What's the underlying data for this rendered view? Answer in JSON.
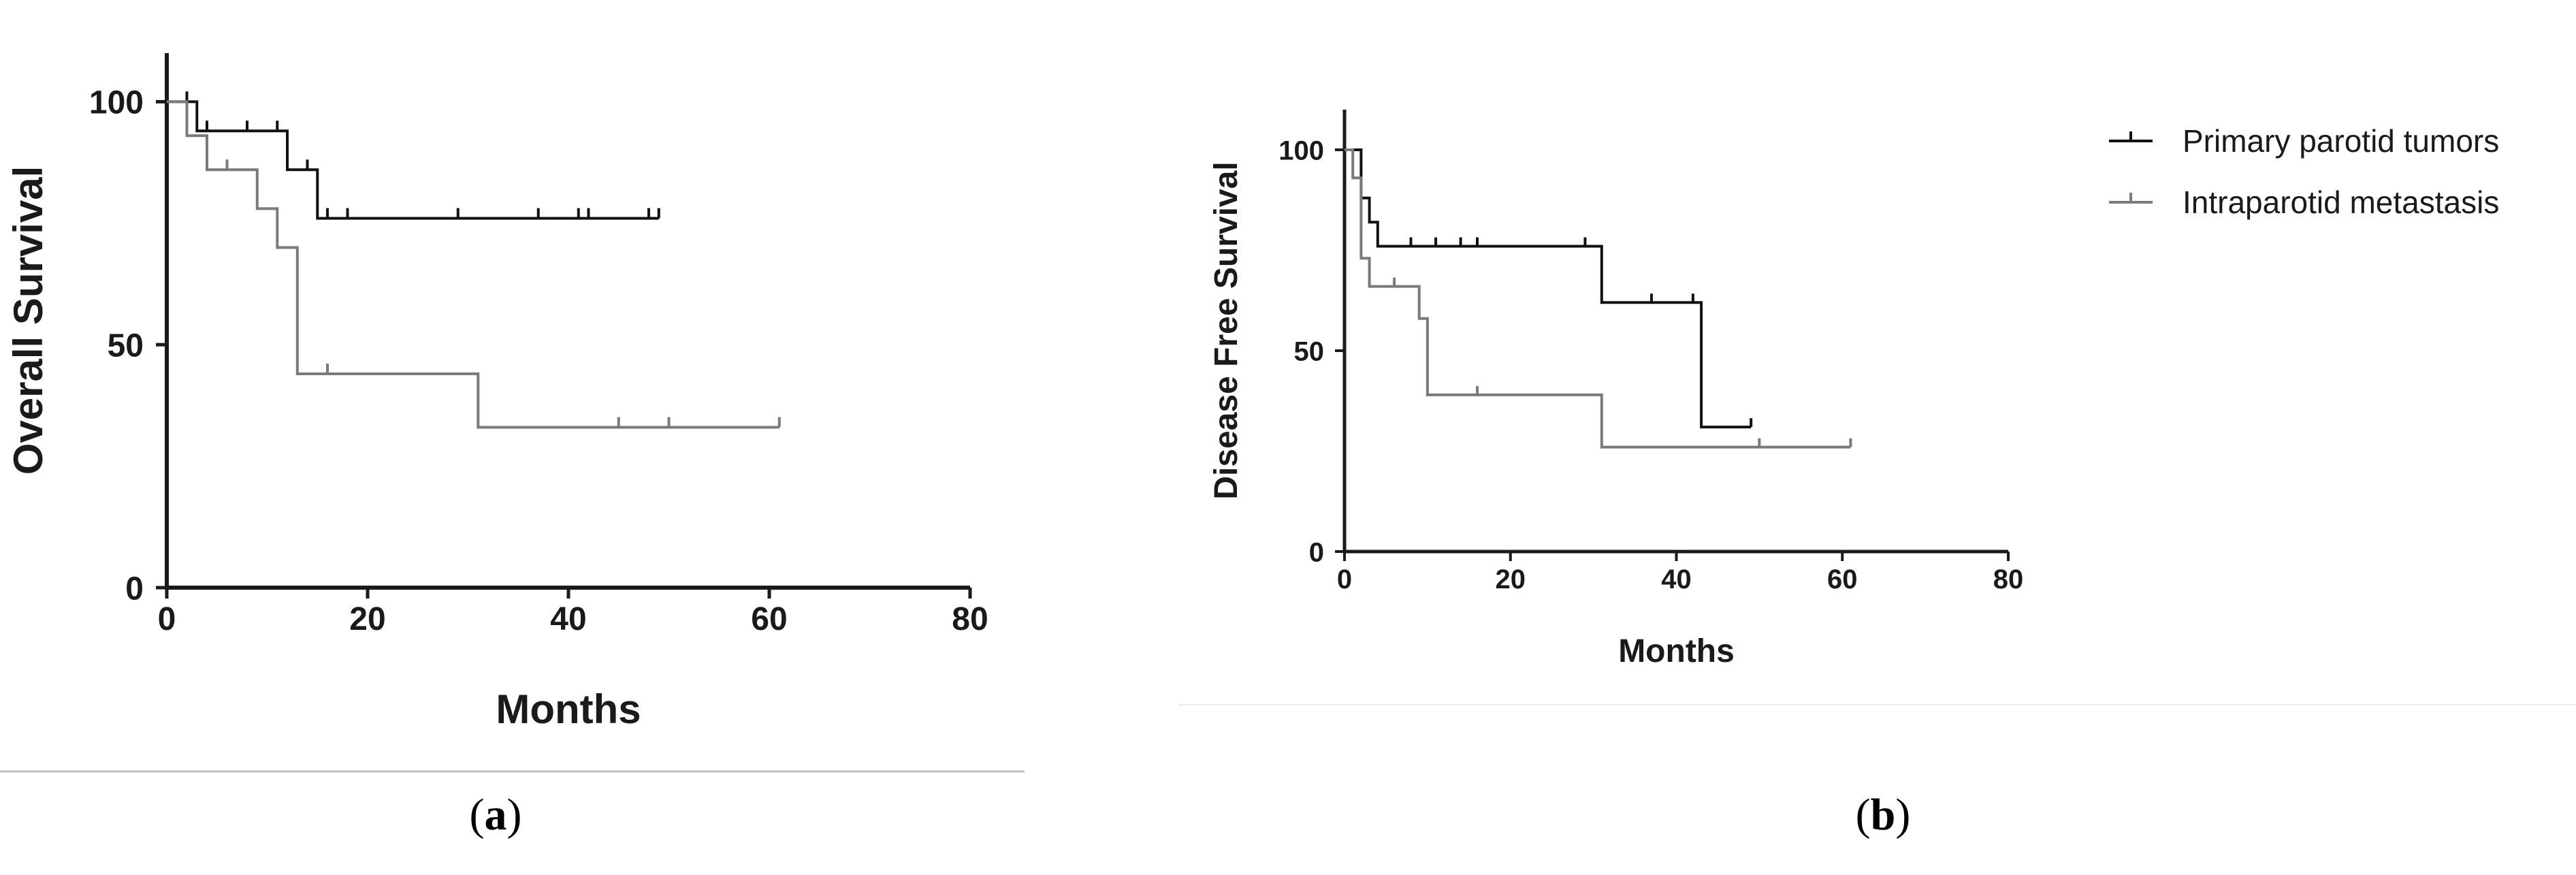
{
  "colors": {
    "primary": "#111111",
    "metastasis": "#7a7a7a",
    "axis": "#1a1a1a",
    "divider": "#bfbfbf"
  },
  "legend": [
    {
      "label": "Primary parotid tumors",
      "series": "primary"
    },
    {
      "label": "Intraparotid metastasis",
      "series": "metastasis"
    }
  ],
  "chart_data": [
    {
      "type": "line",
      "panel": "a",
      "caption_letter": "a",
      "ylabel": "Overall Survival",
      "xlabel": "Months",
      "xlim": [
        0,
        80
      ],
      "ylim": [
        0,
        110
      ],
      "xticks": [
        "0",
        "20",
        "40",
        "60",
        "80"
      ],
      "yticks": [
        "0",
        "50",
        "100"
      ],
      "series": [
        {
          "name": "Primary parotid tumors",
          "key": "primary",
          "steps": [
            [
              0,
              100
            ],
            [
              3,
              100
            ],
            [
              3,
              94
            ],
            [
              12,
              94
            ],
            [
              12,
              86
            ],
            [
              15,
              86
            ],
            [
              15,
              76
            ],
            [
              49,
              76
            ]
          ],
          "censored": [
            [
              2,
              100
            ],
            [
              4,
              94
            ],
            [
              8,
              94
            ],
            [
              11,
              94
            ],
            [
              14,
              86
            ],
            [
              16,
              76
            ],
            [
              18,
              76
            ],
            [
              29,
              76
            ],
            [
              37,
              76
            ],
            [
              41,
              76
            ],
            [
              42,
              76
            ],
            [
              48,
              76
            ],
            [
              49,
              76
            ]
          ]
        },
        {
          "name": "Intraparotid metastasis",
          "key": "metastasis",
          "steps": [
            [
              0,
              100
            ],
            [
              2,
              100
            ],
            [
              2,
              93
            ],
            [
              4,
              93
            ],
            [
              4,
              86
            ],
            [
              9,
              86
            ],
            [
              9,
              78
            ],
            [
              11,
              78
            ],
            [
              11,
              70
            ],
            [
              13,
              70
            ],
            [
              13,
              44
            ],
            [
              31,
              44
            ],
            [
              31,
              33
            ],
            [
              61,
              33
            ]
          ],
          "censored": [
            [
              6,
              86
            ],
            [
              16,
              44
            ],
            [
              45,
              33
            ],
            [
              50,
              33
            ],
            [
              61,
              33
            ]
          ]
        }
      ]
    },
    {
      "type": "line",
      "panel": "b",
      "caption_letter": "b",
      "ylabel": "Disease Free Survival",
      "xlabel": "Months",
      "xlim": [
        0,
        80
      ],
      "ylim": [
        0,
        110
      ],
      "xticks": [
        "0",
        "20",
        "40",
        "60",
        "80"
      ],
      "yticks": [
        "0",
        "50",
        "100"
      ],
      "series": [
        {
          "name": "Primary parotid tumors",
          "key": "primary",
          "steps": [
            [
              0,
              100
            ],
            [
              2,
              100
            ],
            [
              2,
              88
            ],
            [
              3,
              88
            ],
            [
              3,
              82
            ],
            [
              4,
              82
            ],
            [
              4,
              76
            ],
            [
              31,
              76
            ],
            [
              31,
              62
            ],
            [
              43,
              62
            ],
            [
              43,
              31
            ],
            [
              49,
              31
            ]
          ],
          "censored": [
            [
              8,
              76
            ],
            [
              11,
              76
            ],
            [
              14,
              76
            ],
            [
              16,
              76
            ],
            [
              29,
              76
            ],
            [
              37,
              62
            ],
            [
              42,
              62
            ],
            [
              49,
              31
            ]
          ]
        },
        {
          "name": "Intraparotid metastasis",
          "key": "metastasis",
          "steps": [
            [
              0,
              100
            ],
            [
              1,
              100
            ],
            [
              1,
              93
            ],
            [
              2,
              93
            ],
            [
              2,
              73
            ],
            [
              3,
              73
            ],
            [
              3,
              66
            ],
            [
              9,
              66
            ],
            [
              9,
              58
            ],
            [
              10,
              58
            ],
            [
              10,
              39
            ],
            [
              31,
              39
            ],
            [
              31,
              26
            ],
            [
              61,
              26
            ]
          ],
          "censored": [
            [
              6,
              66
            ],
            [
              16,
              39
            ],
            [
              50,
              26
            ],
            [
              61,
              26
            ]
          ]
        }
      ]
    }
  ]
}
